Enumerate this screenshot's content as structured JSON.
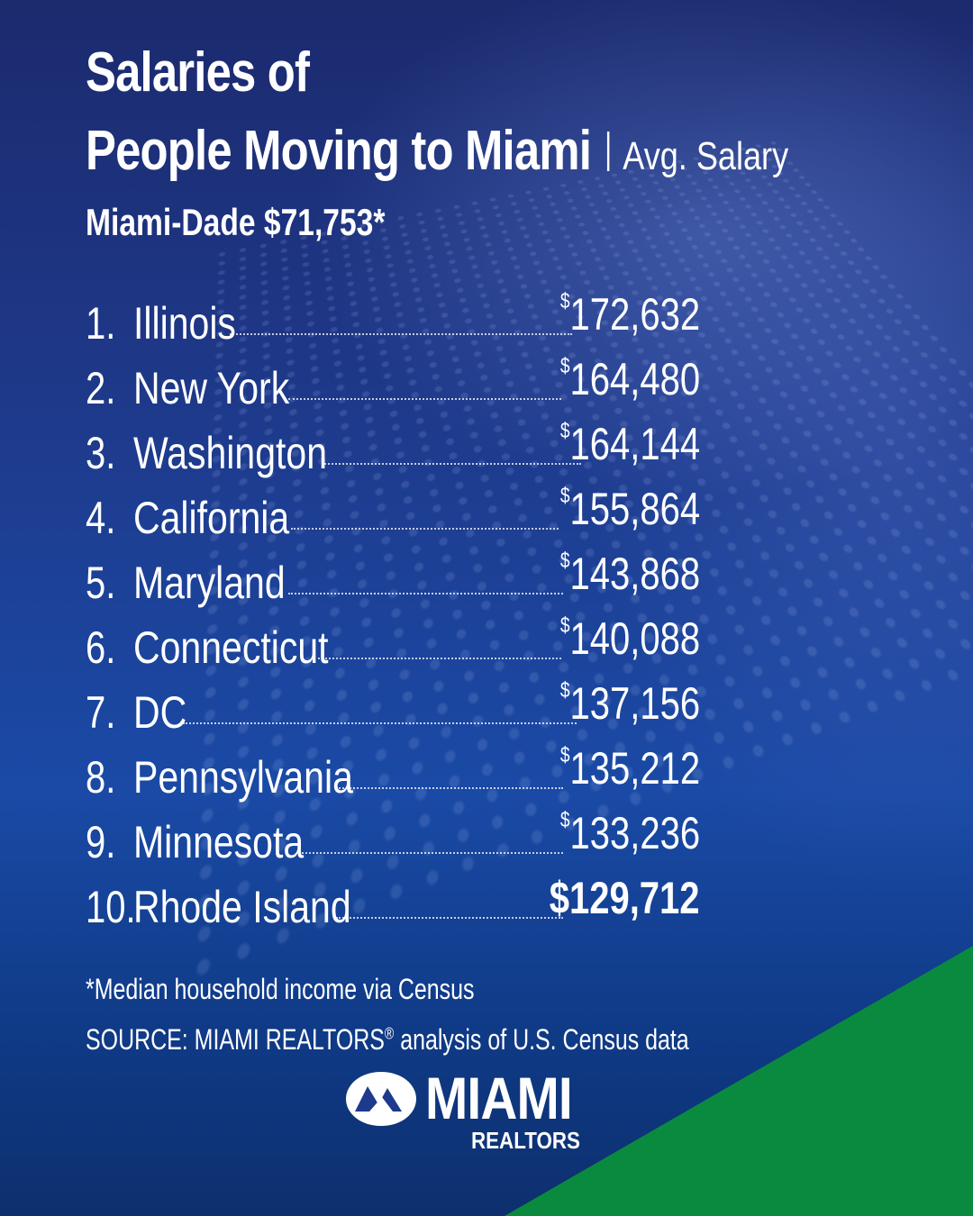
{
  "header": {
    "title_line1": "Salaries of",
    "title_line2": "People Moving to Miami",
    "title_suffix": "Avg. Salary",
    "subtitle": "Miami-Dade $71,753*"
  },
  "rankings": [
    {
      "rank": "1.",
      "state": "Illinois",
      "currency": "$",
      "amount": "172,632"
    },
    {
      "rank": "2.",
      "state": "New York",
      "currency": "$",
      "amount": "164,480"
    },
    {
      "rank": "3.",
      "state": "Washington",
      "currency": "$",
      "amount": "164,144"
    },
    {
      "rank": "4.",
      "state": "California",
      "currency": "$",
      "amount": "155,864"
    },
    {
      "rank": "5.",
      "state": "Maryland",
      "currency": "$",
      "amount": "143,868"
    },
    {
      "rank": "6.",
      "state": "Connecticut",
      "currency": "$",
      "amount": "140,088"
    },
    {
      "rank": "7.",
      "state": "DC",
      "currency": "$",
      "amount": "137,156"
    },
    {
      "rank": "8.",
      "state": "Pennsylvania",
      "currency": "$",
      "amount": "135,212"
    },
    {
      "rank": "9.",
      "state": "Minnesota",
      "currency": "$",
      "amount": "133,236"
    },
    {
      "rank": "10.",
      "state": "Rhode Island",
      "currency": "",
      "amount": "$129,712"
    }
  ],
  "footer": {
    "footnote": "*Median household income via Census",
    "source_prefix": "SOURCE: MIAMI REALTORS",
    "source_mark": "®",
    "source_suffix": " analysis of U.S. Census data"
  },
  "logo": {
    "word": "MIAMI",
    "sub": "REALTORS"
  },
  "colors": {
    "background": "#1e3a8c",
    "accent_green": "#0a8a3e",
    "text": "#ffffff"
  }
}
